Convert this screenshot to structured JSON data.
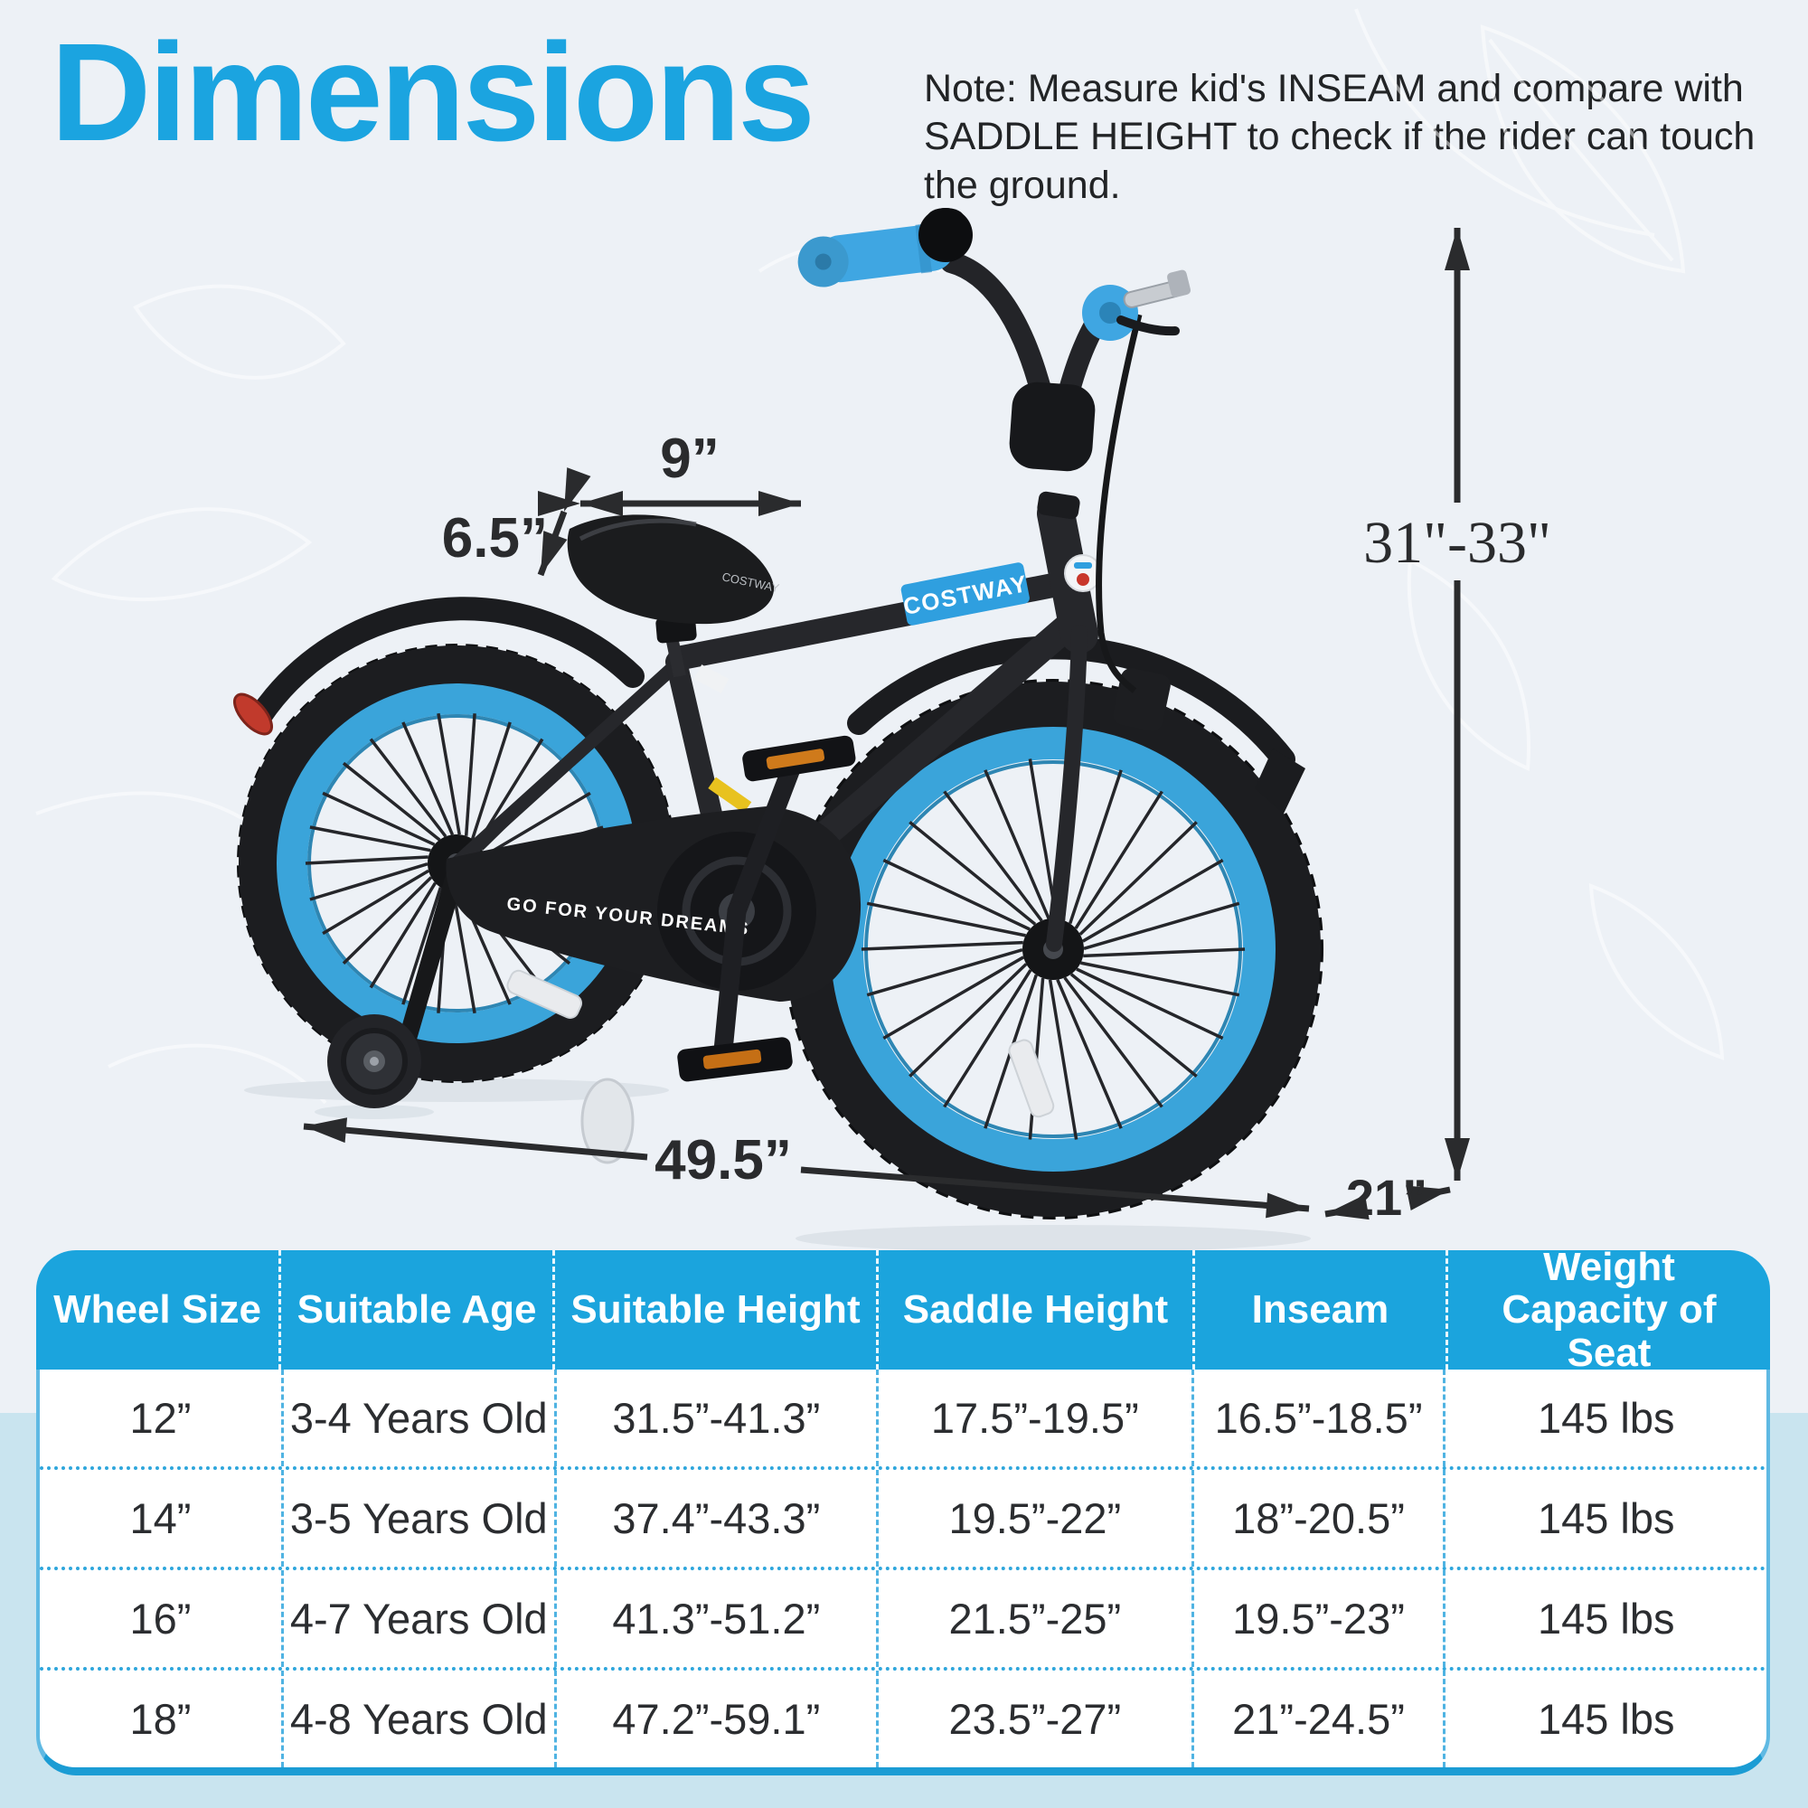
{
  "colors": {
    "accent_blue": "#1ba4dd",
    "title_blue": "#1ba4e0",
    "band_blue": "#c9e4ef",
    "rim_blue": "#3aa4da",
    "grip_blue": "#3fa6e2",
    "arrow_black": "#2a2b2d",
    "tire_black": "#1c1d20"
  },
  "header": {
    "title": "Dimensions",
    "note": "Note: Measure kid's INSEAM and compare with SADDLE HEIGHT to check if the rider can touch the ground."
  },
  "figure": {
    "dims": {
      "seat_length": "9”",
      "seat_width": "6.5”",
      "handlebar_height": "31\"-33\"",
      "overall_length": "49.5”",
      "handlebar_width": "21”"
    },
    "decals": {
      "top_tube": "COSTWAY",
      "saddle": "COSTWAY",
      "chain_guard": "GO FOR YOUR DREAMS"
    }
  },
  "table": {
    "headers": [
      "Wheel Size",
      "Suitable Age",
      "Suitable Height",
      "Saddle Height",
      "Inseam",
      "Weight Capacity of Seat"
    ],
    "rows": [
      [
        "12”",
        "3-4 Years Old",
        "31.5”-41.3”",
        "17.5”-19.5”",
        "16.5”-18.5”",
        "145 lbs"
      ],
      [
        "14”",
        "3-5 Years Old",
        "37.4”-43.3”",
        "19.5”-22”",
        "18”-20.5”",
        "145 lbs"
      ],
      [
        "16”",
        "4-7 Years Old",
        "41.3”-51.2”",
        "21.5”-25”",
        "19.5”-23”",
        "145 lbs"
      ],
      [
        "18”",
        "4-8 Years Old",
        "47.2”-59.1”",
        "23.5”-27”",
        "21”-24.5”",
        "145 lbs"
      ]
    ]
  }
}
